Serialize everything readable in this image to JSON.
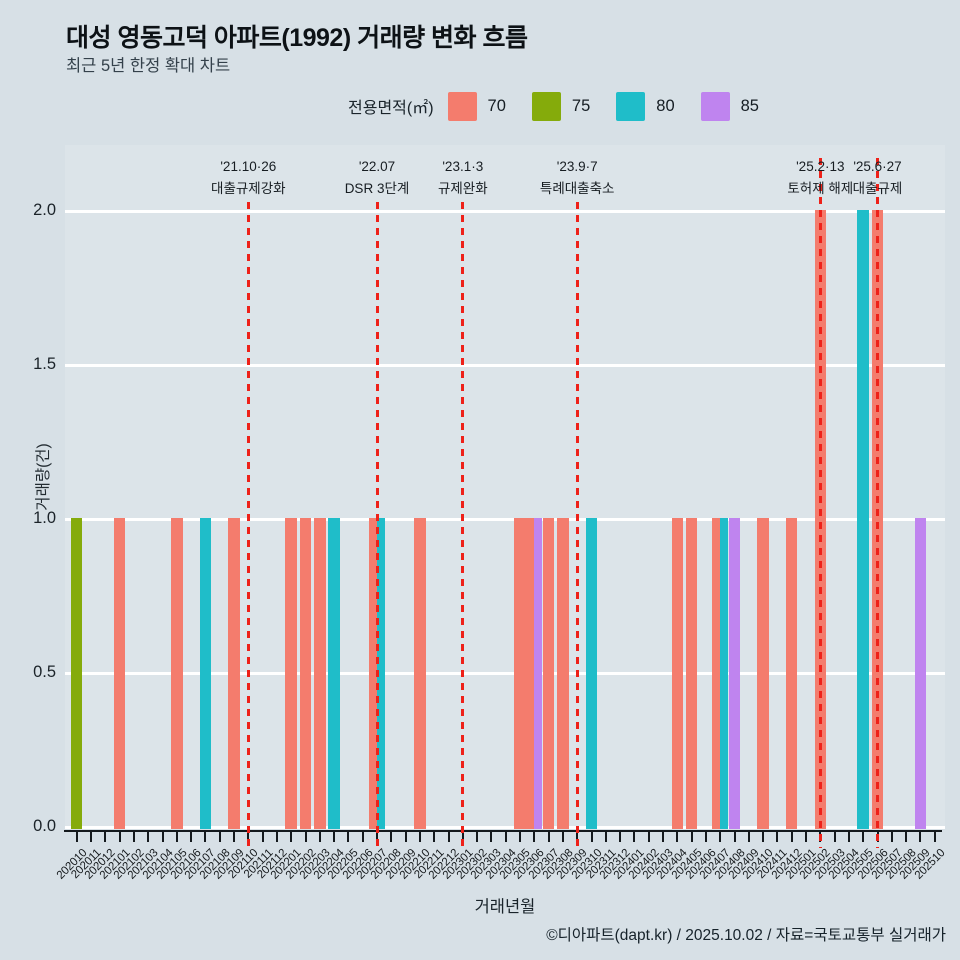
{
  "title": "대성 영동고덕 아파트(1992) 거래량 변화 흐름",
  "subtitle": "최근 5년 한정 확대 차트",
  "legend": {
    "label": "전용면적(㎡)",
    "items": [
      {
        "label": "70",
        "color": "#F47C6D"
      },
      {
        "label": "75",
        "color": "#85AB0B"
      },
      {
        "label": "80",
        "color": "#1FBDC9"
      },
      {
        "label": "85",
        "color": "#BF84EF"
      }
    ]
  },
  "footer": "©디아파트(dapt.kr) / 2025.10.02 / 자료=국토교통부 실거래가",
  "chart_data": {
    "type": "bar",
    "title": "대성 영동고덕 아파트(1992) 거래량 변화 흐름",
    "xlabel": "거래년월",
    "ylabel": "거래량(건)",
    "ylim": [
      0,
      2.0
    ],
    "yticks": [
      "0.0",
      "0.5",
      "1.0",
      "1.5",
      "2.0"
    ],
    "grid": "white horizontal",
    "legend_position": "top",
    "categories": [
      "202010",
      "202011",
      "202012",
      "202101",
      "202102",
      "202103",
      "202104",
      "202105",
      "202106",
      "202107",
      "202108",
      "202109",
      "202110",
      "202111",
      "202112",
      "202201",
      "202202",
      "202203",
      "202204",
      "202205",
      "202206",
      "202207",
      "202208",
      "202209",
      "202210",
      "202211",
      "202212",
      "202301",
      "202302",
      "202303",
      "202304",
      "202305",
      "202306",
      "202307",
      "202308",
      "202309",
      "202310",
      "202311",
      "202312",
      "202401",
      "202402",
      "202403",
      "202404",
      "202405",
      "202406",
      "202407",
      "202408",
      "202409",
      "202410",
      "202411",
      "202412",
      "202501",
      "202502",
      "202503",
      "202504",
      "202505",
      "202506",
      "202507",
      "202508",
      "202509",
      "202510"
    ],
    "series": [
      {
        "name": "70",
        "color": "#F47C6D"
      },
      {
        "name": "75",
        "color": "#85AB0B"
      },
      {
        "name": "80",
        "color": "#1FBDC9"
      },
      {
        "name": "85",
        "color": "#BF84EF"
      }
    ],
    "bars": [
      {
        "month": "202010",
        "area": "75",
        "value": 1
      },
      {
        "month": "202101",
        "area": "70",
        "value": 1
      },
      {
        "month": "202105",
        "area": "70",
        "value": 1
      },
      {
        "month": "202107",
        "area": "80",
        "value": 1
      },
      {
        "month": "202109",
        "area": "70",
        "value": 1
      },
      {
        "month": "202201",
        "area": "70",
        "value": 1
      },
      {
        "month": "202202",
        "area": "70",
        "value": 1
      },
      {
        "month": "202203",
        "area": "70",
        "value": 1
      },
      {
        "month": "202204",
        "area": "80",
        "value": 1
      },
      {
        "month": "202207",
        "area": "70",
        "value": 1
      },
      {
        "month": "202207",
        "area": "80",
        "value": 1
      },
      {
        "month": "202210",
        "area": "70",
        "value": 1
      },
      {
        "month": "202305",
        "area": "70",
        "value": 1
      },
      {
        "month": "202306",
        "area": "70",
        "value": 1
      },
      {
        "month": "202306",
        "area": "85",
        "value": 1
      },
      {
        "month": "202307",
        "area": "70",
        "value": 1
      },
      {
        "month": "202308",
        "area": "70",
        "value": 1
      },
      {
        "month": "202310",
        "area": "80",
        "value": 1
      },
      {
        "month": "202404",
        "area": "70",
        "value": 1
      },
      {
        "month": "202405",
        "area": "70",
        "value": 1
      },
      {
        "month": "202407",
        "area": "70",
        "value": 1
      },
      {
        "month": "202407",
        "area": "80",
        "value": 1
      },
      {
        "month": "202408",
        "area": "85",
        "value": 1
      },
      {
        "month": "202410",
        "area": "70",
        "value": 1
      },
      {
        "month": "202412",
        "area": "70",
        "value": 1
      },
      {
        "month": "202502",
        "area": "70",
        "value": 2
      },
      {
        "month": "202505",
        "area": "80",
        "value": 2
      },
      {
        "month": "202506",
        "area": "70",
        "value": 2
      },
      {
        "month": "202509",
        "area": "85",
        "value": 1
      }
    ],
    "annotations": [
      {
        "month": "202110",
        "date": "'21.10·26",
        "label": "대출규제강화"
      },
      {
        "month": "202207",
        "date": "'22.07",
        "label": "DSR 3단계"
      },
      {
        "month": "202301",
        "date": "'23.1·3",
        "label": "규제완화"
      },
      {
        "month": "202309",
        "date": "'23.9·7",
        "label": "특례대출축소"
      },
      {
        "month": "202502",
        "date": "'25.2·13",
        "label": "토허제 해제"
      },
      {
        "month": "202506",
        "date": "'25.6·27",
        "label": "대출규제"
      }
    ]
  }
}
